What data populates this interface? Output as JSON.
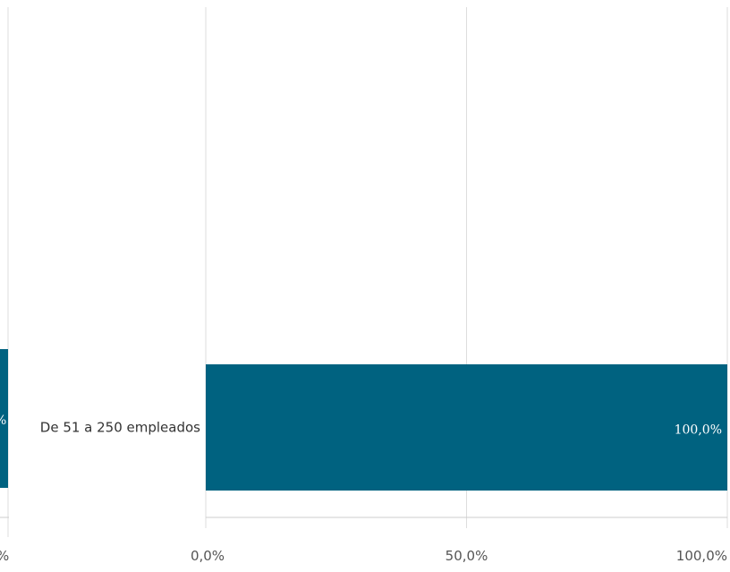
{
  "colors": {
    "bar": "#006280",
    "grid": "#dddddd",
    "axis": "#cccccc"
  },
  "chart_data": {
    "type": "bar",
    "orientation": "horizontal",
    "title": "",
    "xlabel": "",
    "ylabel": "",
    "xlim": [
      0,
      100
    ],
    "x_ticks": [
      0,
      50,
      100
    ],
    "x_tick_labels": [
      "0,0%",
      "50,0%",
      "100,0%"
    ],
    "grid": true,
    "categories": [
      "De 51 a 250 empleados"
    ],
    "values": [
      100.0
    ],
    "data_labels": [
      "100,0%"
    ],
    "partial_left_tick_label": "%",
    "partial_left_data_label": "%"
  }
}
